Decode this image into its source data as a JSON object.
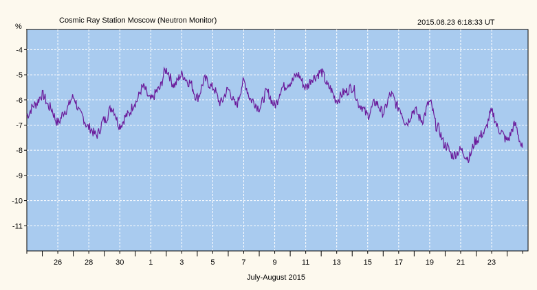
{
  "chart_data": {
    "type": "line",
    "title": "Cosmic Ray Station Moscow (Neutron Monitor)",
    "timestamp": "2015.08.23 6:18:33 UT",
    "ylabel": "%",
    "xlabel": "July-August 2015",
    "ylim": [
      -12,
      -3.2
    ],
    "yticks": [
      "-4",
      "-5",
      "-6",
      "-7",
      "-8",
      "-9",
      "-10",
      "-11"
    ],
    "xticks": [
      "26",
      "28",
      "30",
      "1",
      "3",
      "5",
      "7",
      "9",
      "11",
      "13",
      "15",
      "17",
      "19",
      "21",
      "23"
    ],
    "grid": true,
    "colors": {
      "plot_bg": "#a9cbef",
      "line": "#6a1a9a",
      "grid": "#ffffff"
    },
    "series": [
      {
        "x": [
          24.0,
          24.5,
          25.0,
          25.5,
          26.0,
          26.5,
          27.0,
          27.5,
          28.0,
          28.5,
          29.0,
          29.5,
          30.0,
          30.5,
          31.0,
          31.5,
          32.0,
          32.5,
          33.0,
          33.5,
          34.0,
          34.5,
          35.0,
          35.5,
          36.0,
          36.5,
          37.0,
          37.5,
          38.0,
          38.5,
          39.0,
          39.5,
          40.0,
          40.5,
          41.0,
          41.5,
          42.0,
          42.5,
          43.0,
          43.5,
          44.0,
          44.5,
          45.0,
          45.5,
          46.0,
          46.5,
          47.0,
          47.5,
          48.0,
          48.5,
          49.0,
          49.5,
          50.0,
          50.5,
          51.0,
          51.5,
          52.0,
          52.5,
          53.0,
          53.5,
          54.0,
          54.5,
          55.0,
          55.5,
          56.0
        ],
        "values": [
          -6.6,
          -6.2,
          -5.8,
          -6.3,
          -6.9,
          -6.4,
          -5.9,
          -6.6,
          -7.1,
          -7.4,
          -6.8,
          -6.3,
          -7.0,
          -6.6,
          -6.1,
          -5.5,
          -6.0,
          -5.6,
          -4.8,
          -5.4,
          -5.0,
          -5.3,
          -5.9,
          -5.2,
          -5.5,
          -6.1,
          -5.6,
          -6.2,
          -5.3,
          -6.0,
          -6.3,
          -5.7,
          -6.2,
          -5.5,
          -5.3,
          -5.0,
          -5.5,
          -5.1,
          -4.9,
          -5.5,
          -6.0,
          -5.7,
          -5.5,
          -6.2,
          -6.6,
          -6.1,
          -6.5,
          -5.8,
          -6.3,
          -6.9,
          -6.4,
          -6.8,
          -6.1,
          -7.1,
          -7.8,
          -8.2,
          -8.0,
          -8.3,
          -7.6,
          -7.3,
          -6.5,
          -7.2,
          -7.6,
          -7.0,
          -7.9
        ]
      }
    ]
  }
}
